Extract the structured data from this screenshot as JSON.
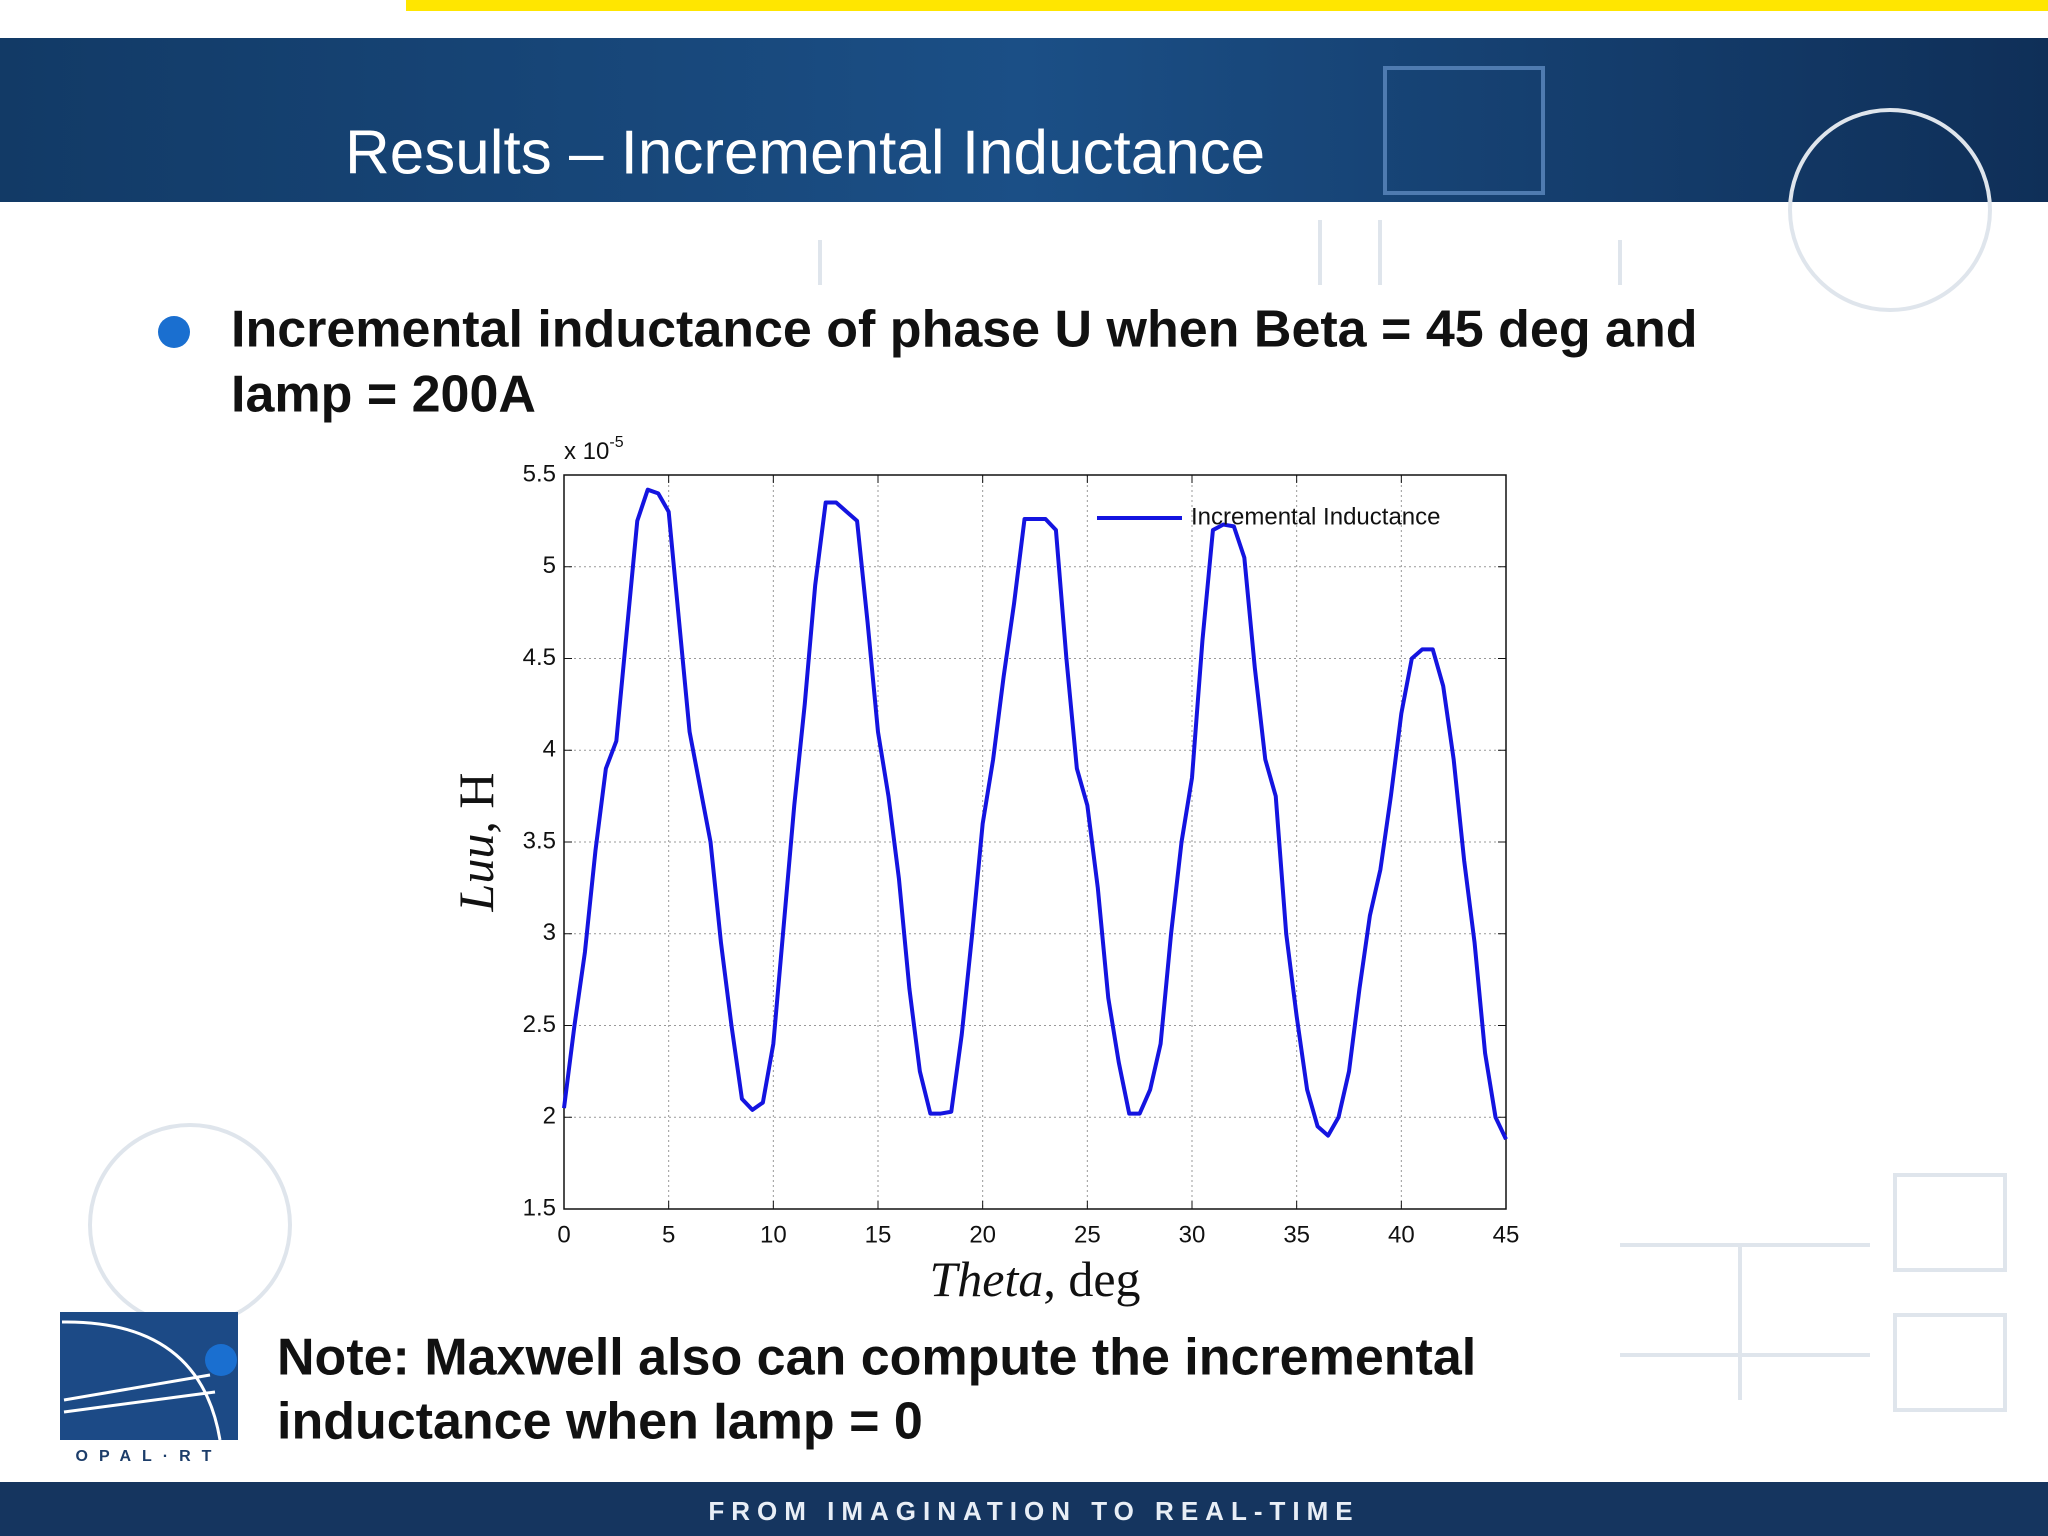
{
  "header": {
    "title": "Results – Incremental Inductance"
  },
  "bullet": {
    "lines": [
      "Incremental inductance of phase U when Beta = 45 deg and",
      "Iamp = 200A"
    ]
  },
  "chart_data": {
    "type": "line",
    "ylabel": [
      "Luu",
      ", H"
    ],
    "xlabel": [
      "Theta",
      ", deg"
    ],
    "ylabel_multiplier": "x 10",
    "ylabel_exponent": "-5",
    "x": [
      0,
      0.5,
      1,
      1.5,
      2,
      2.5,
      3,
      3.5,
      4,
      4.5,
      5,
      5.5,
      6,
      6.5,
      7,
      7.5,
      8,
      8.5,
      9,
      9.5,
      10,
      10.5,
      11,
      11.5,
      12,
      12.5,
      13,
      13.5,
      14,
      14.5,
      15,
      15.5,
      16,
      16.5,
      17,
      17.5,
      18,
      18.5,
      19,
      19.5,
      20,
      20.5,
      21,
      21.5,
      22,
      22.5,
      23,
      23.5,
      24,
      24.5,
      25,
      25.5,
      26,
      26.5,
      27,
      27.5,
      28,
      28.5,
      29,
      29.5,
      30,
      30.5,
      31,
      31.5,
      32,
      32.5,
      33,
      33.5,
      34,
      34.5,
      35,
      35.5,
      36,
      36.5,
      37,
      37.5,
      38,
      38.5,
      39,
      39.5,
      40,
      40.5,
      41,
      41.5,
      42,
      42.5,
      43,
      43.5,
      44,
      44.5,
      45
    ],
    "series": [
      {
        "name": "Incremental Inductance",
        "color": "#1414e0",
        "values": [
          2.05,
          2.5,
          2.9,
          3.45,
          3.9,
          4.05,
          4.65,
          5.25,
          5.42,
          5.4,
          5.3,
          4.7,
          4.1,
          3.8,
          3.5,
          2.95,
          2.5,
          2.1,
          2.04,
          2.08,
          2.4,
          3.05,
          3.7,
          4.25,
          4.9,
          5.35,
          5.35,
          5.3,
          5.25,
          4.7,
          4.1,
          3.75,
          3.3,
          2.7,
          2.25,
          2.02,
          2.02,
          2.03,
          2.45,
          3.0,
          3.6,
          3.95,
          4.4,
          4.8,
          5.26,
          5.26,
          5.26,
          5.2,
          4.5,
          3.9,
          3.7,
          3.25,
          2.65,
          2.3,
          2.02,
          2.02,
          2.15,
          2.4,
          3.0,
          3.5,
          3.85,
          4.6,
          5.2,
          5.23,
          5.22,
          5.05,
          4.45,
          3.95,
          3.75,
          3.0,
          2.55,
          2.15,
          1.95,
          1.9,
          2.0,
          2.25,
          2.7,
          3.1,
          3.35,
          3.75,
          4.2,
          4.5,
          4.55,
          4.55,
          4.35,
          3.95,
          3.4,
          2.95,
          2.35,
          2.0,
          1.88
        ]
      }
    ],
    "xlim": [
      0,
      45
    ],
    "xticks": [
      0,
      5,
      10,
      15,
      20,
      25,
      30,
      35,
      40,
      45
    ],
    "ylim": [
      1.5,
      5.5
    ],
    "yticks": [
      1.5,
      2,
      2.5,
      3,
      3.5,
      4,
      4.5,
      5,
      5.5
    ],
    "grid": true,
    "legend": "northeast"
  },
  "note": {
    "lines": [
      "Note: Maxwell also can compute the incremental",
      "inductance when Iamp = 0"
    ]
  },
  "logo": "OPAL·RT",
  "footer": "FROM IMAGINATION TO REAL-TIME"
}
